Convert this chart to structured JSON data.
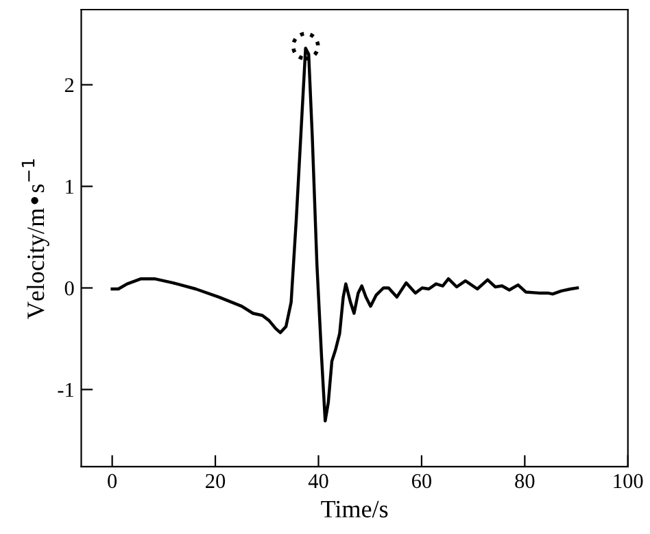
{
  "chart_data": {
    "type": "line",
    "xlabel": "Time/s",
    "ylabel": "Velocity/m•s$^{−1}$",
    "xlim": [
      -6,
      100
    ],
    "xticks": [
      0,
      20,
      40,
      60,
      80,
      100
    ],
    "ylim": [
      -1.76,
      2.74
    ],
    "yticks": [
      -1,
      0,
      1,
      2
    ],
    "grid": false,
    "legend": false,
    "series": [
      {
        "color": "#000000",
        "x": [
          0,
          1.2,
          2.9,
          5.6,
          8.2,
          11.8,
          16.2,
          20.7,
          25.1,
          27.3,
          29.1,
          30.4,
          31.7,
          32.6,
          33.7,
          34.7,
          35.7,
          36.8,
          37.5,
          38.1,
          38.8,
          39.7,
          40.6,
          41.3,
          41.9,
          42.6,
          43.3,
          44.1,
          44.8,
          45.3,
          46.2,
          46.9,
          47.7,
          48.4,
          49.2,
          50.1,
          51.2,
          52.6,
          53.6,
          55.2,
          57.0,
          58.8,
          60.1,
          61.4,
          62.8,
          64.1,
          65.2,
          66.8,
          68.5,
          70.8,
          72.8,
          74.3,
          75.6,
          77.0,
          78.7,
          80.2,
          82.7,
          84.5,
          85.4,
          87.1,
          88.9,
          90.2
        ],
        "values": [
          -0.01,
          -0.01,
          0.04,
          0.09,
          0.09,
          0.05,
          -0.01,
          -0.09,
          -0.18,
          -0.25,
          -0.27,
          -0.32,
          -0.4,
          -0.44,
          -0.38,
          -0.14,
          0.68,
          1.71,
          2.36,
          2.3,
          1.49,
          0.23,
          -0.68,
          -1.31,
          -1.13,
          -0.72,
          -0.61,
          -0.45,
          -0.09,
          0.04,
          -0.14,
          -0.25,
          -0.05,
          0.02,
          -0.09,
          -0.18,
          -0.07,
          0,
          0,
          -0.09,
          0.05,
          -0.05,
          0,
          -0.01,
          0.04,
          0.02,
          0.09,
          0.01,
          0.07,
          -0.01,
          0.08,
          0.01,
          0.02,
          -0.02,
          0.03,
          -0.04,
          -0.05,
          -0.05,
          -0.06,
          -0.03,
          -0.01,
          0
        ]
      },
      {
        "type": "scatter",
        "color": "#000000",
        "marker": "circle",
        "line_style": "dotted",
        "x": [
          37.5
        ],
        "values": [
          2.38
        ]
      }
    ]
  }
}
